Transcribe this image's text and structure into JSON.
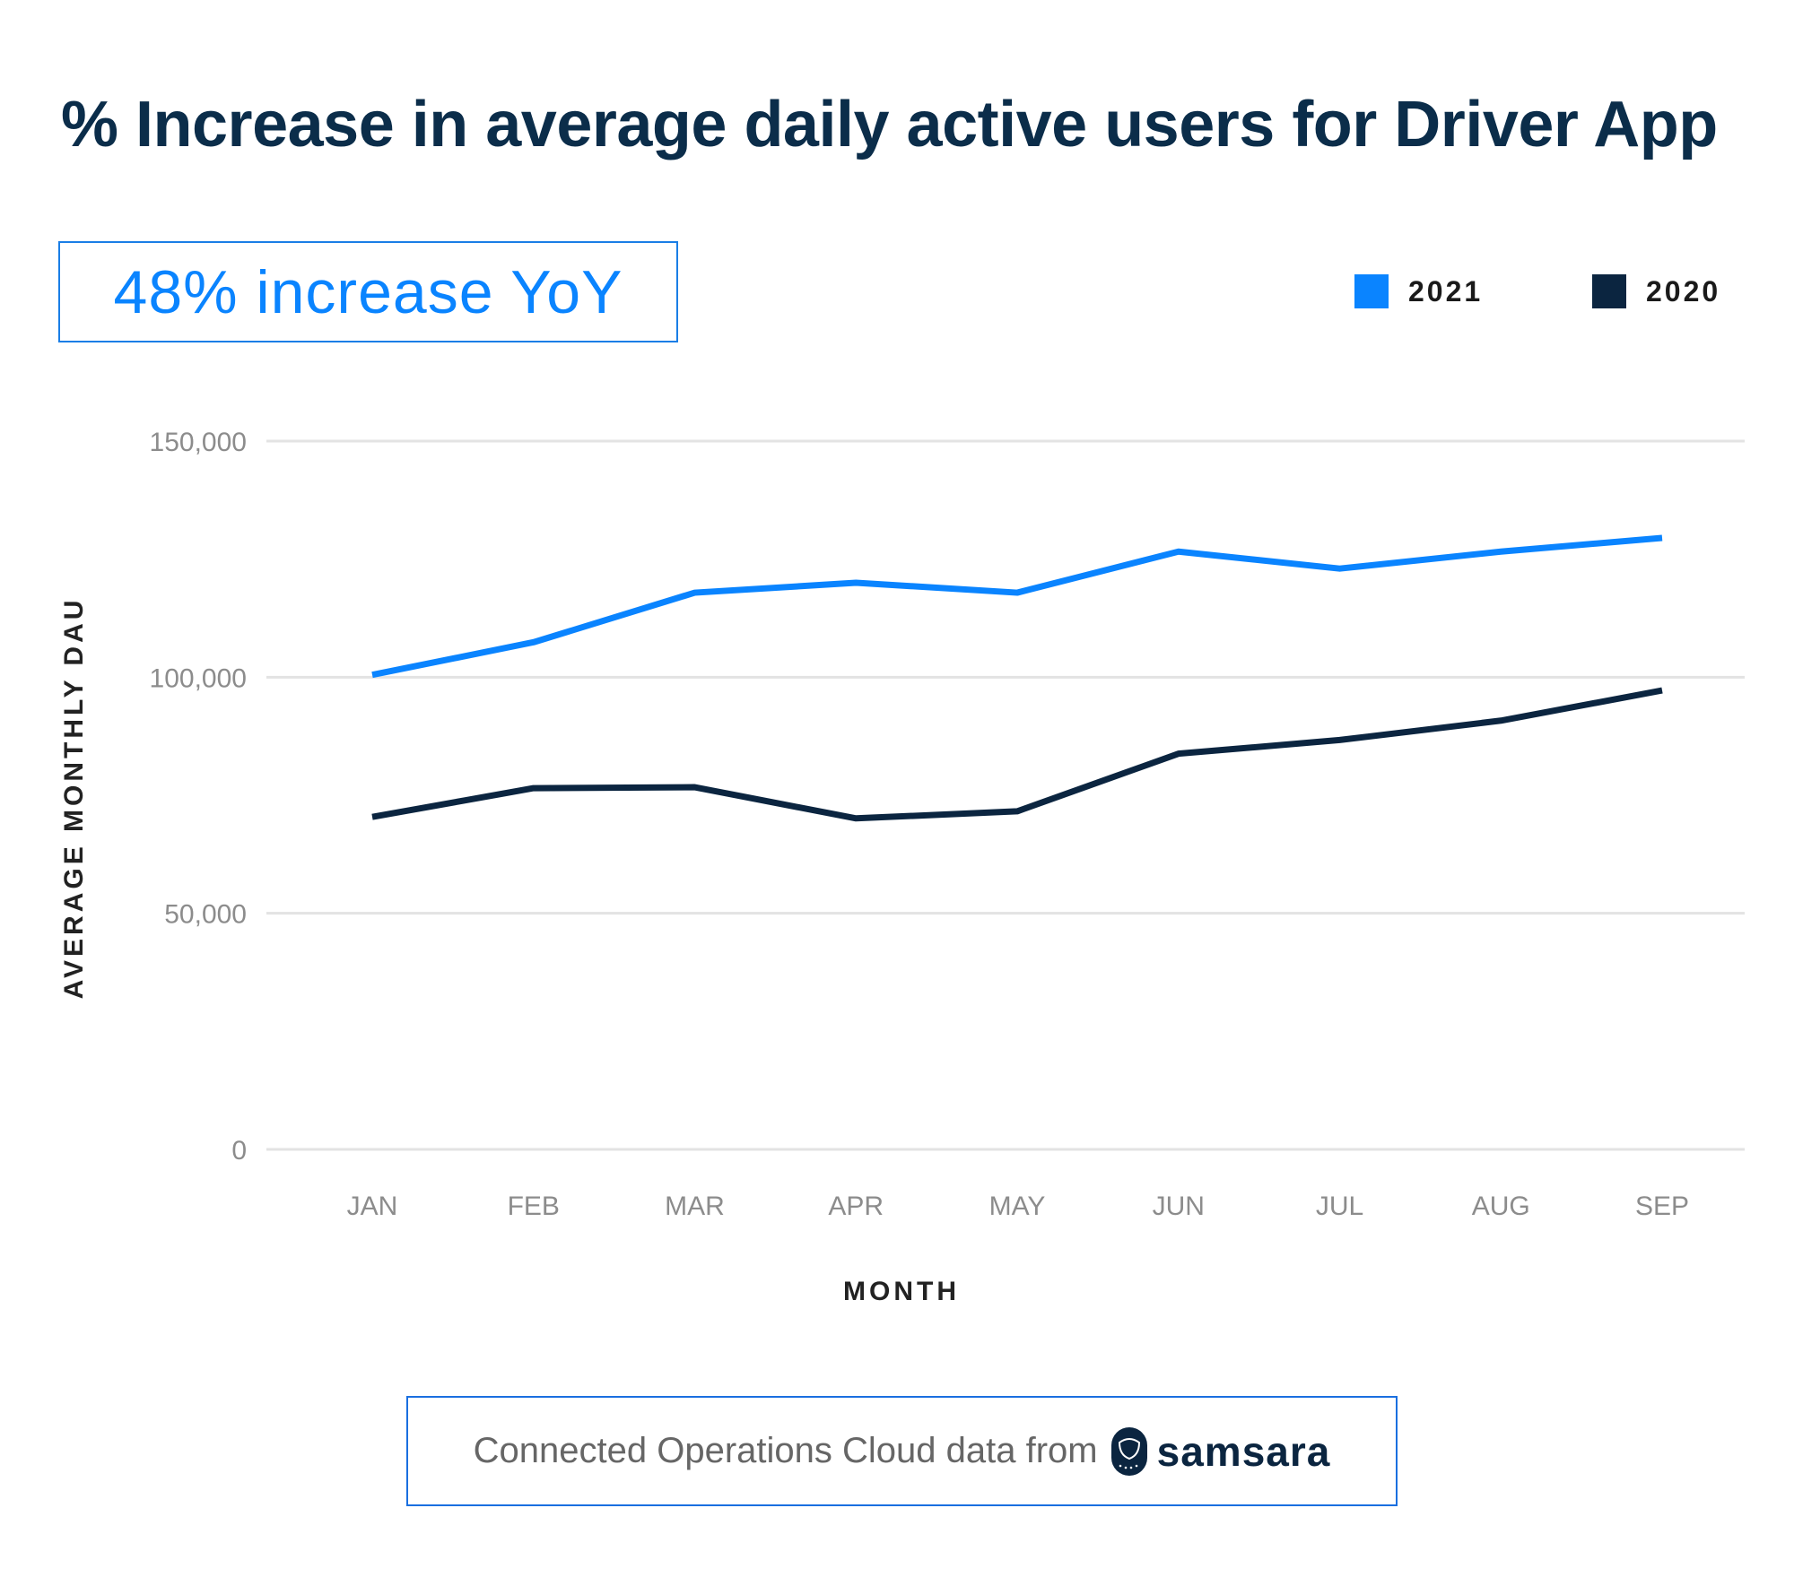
{
  "title": "% Increase in average daily active users for Driver App",
  "kpi": "48% increase YoY",
  "footer": {
    "text": "Connected Operations Cloud data from",
    "brand": "samsara"
  },
  "colors": {
    "2021": "#0a84ff",
    "2020": "#0b2540",
    "title": "#0b2d4a"
  },
  "chart_data": {
    "type": "line",
    "title": "% Increase in average daily active users for Driver App",
    "xlabel": "MONTH",
    "ylabel": "AVERAGE MONTHLY DAU",
    "categories": [
      "JAN",
      "FEB",
      "MAR",
      "APR",
      "MAY",
      "JUN",
      "JUL",
      "AUG",
      "SEP"
    ],
    "ylim": [
      0,
      150000
    ],
    "yticks": [
      0,
      50000,
      100000,
      150000
    ],
    "ytick_labels": [
      "0",
      "50,000",
      "100,000",
      "150,000"
    ],
    "grid": true,
    "legend_position": "top-right",
    "series": [
      {
        "name": "2021",
        "color": "#0a84ff",
        "values": [
          100500,
          107400,
          117900,
          120000,
          117900,
          126600,
          123000,
          126600,
          129500
        ]
      },
      {
        "name": "2020",
        "color": "#0b2540",
        "values": [
          70400,
          76500,
          76700,
          70100,
          71600,
          83800,
          86700,
          90800,
          97200
        ]
      }
    ]
  }
}
